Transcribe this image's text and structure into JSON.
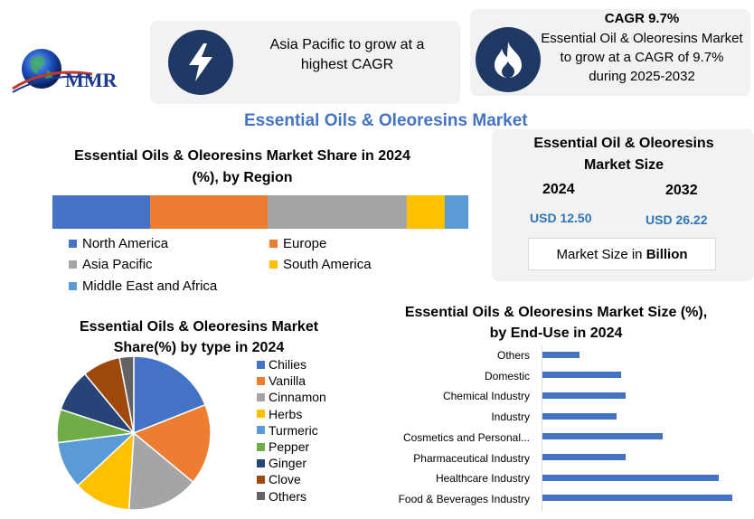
{
  "logo": {
    "text": "MMR"
  },
  "header": {
    "card1_text": "Asia Pacific to grow at a highest CAGR",
    "card2_title": "CAGR 9.7%",
    "card2_text": "Essential Oil & Oleoresins Market to grow at a CAGR of 9.7% during 2025-2032"
  },
  "main_title": "Essential Oils & Oleoresins Market",
  "market_size": {
    "title": "Essential Oil & Oleoresins Market Size",
    "year1": "2024",
    "year2": "2032",
    "value1": "USD 12.50",
    "value2": "USD 26.22",
    "unit_prefix": "Market Size in ",
    "unit_bold": "Billion"
  },
  "chart_data": [
    {
      "type": "bar",
      "orientation": "horizontal-stacked",
      "title": "Essential Oils & Oleoresins  Market Share in 2024 (%), by Region",
      "series": [
        {
          "name": "North America",
          "value": 23.5,
          "color": "#4472c4"
        },
        {
          "name": "Europe",
          "value": 28.3,
          "color": "#ed7d31"
        },
        {
          "name": "Asia Pacific",
          "value": 33.5,
          "color": "#a5a5a5"
        },
        {
          "name": "South America",
          "value": 9.1,
          "color": "#ffc000"
        },
        {
          "name": "Middle East and Africa",
          "value": 5.6,
          "color": "#5b9bd5"
        }
      ],
      "legend": "bottom"
    },
    {
      "type": "pie",
      "title": "Essential Oils & Oleoresins  Market Share(%) by  type in 2024",
      "labels": [
        "Chilies",
        "Vanilla",
        "Cinnamon",
        "Herbs",
        "Turmeric",
        "Pepper",
        "Ginger",
        "Clove",
        "Others"
      ],
      "values": [
        19,
        17,
        15,
        12,
        10,
        7,
        9,
        8,
        3
      ],
      "colors": [
        "#4472c4",
        "#ed7d31",
        "#a5a5a5",
        "#ffc000",
        "#5b9bd5",
        "#70ad47",
        "#264478",
        "#9e480e",
        "#636363"
      ],
      "legend": "right"
    },
    {
      "type": "bar",
      "orientation": "horizontal",
      "title": "Essential Oils & Oleoresins Market Size (%), by End-Use in 2024",
      "categories": [
        "Others",
        "Domestic",
        "Chemical Industry",
        "Industry",
        "Cosmetics and Personal...",
        "Pharmaceutical Industry",
        "Healthcare Industry",
        "Food & Beverages Industry"
      ],
      "values": [
        4,
        8.5,
        9,
        8,
        13,
        9,
        19,
        20.5
      ],
      "color": "#4472c4",
      "xlim": [
        0,
        21
      ]
    }
  ]
}
